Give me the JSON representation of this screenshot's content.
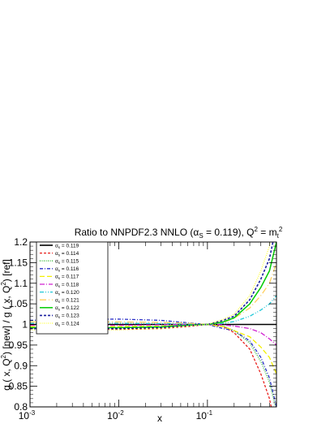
{
  "chart_data": {
    "type": "line",
    "title": "Ratio to NNPDF2.3 NNLO (αS = 0.119), Q2 = mt2",
    "title_parts": {
      "prefix": "Ratio to NNPDF2.3 NNLO (α",
      "alpha_sub": "S",
      "mid": " = 0.119), Q",
      "q_sup": "2",
      "eq": " = m",
      "m_sub": "t",
      "m_sup": "2"
    },
    "xlabel": "x",
    "ylabel": "g ( x, Q2) [new] / g ( x, Q2) [ref]",
    "ylabel_parts": {
      "p1": "g ( x, Q",
      "sup1": "2",
      "p2": ") [new] / g ( x, Q",
      "sup2": "2",
      "p3": ") [ref]"
    },
    "xscale": "log",
    "xlim": [
      0.001,
      0.6
    ],
    "ylim": [
      0.8,
      1.2
    ],
    "grid": false,
    "legend_position": "top-left",
    "x_ticks": [
      {
        "base": "10",
        "exp": "-3",
        "value": 0.001
      },
      {
        "base": "10",
        "exp": "-2",
        "value": 0.01
      },
      {
        "base": "10",
        "exp": "-1",
        "value": 0.1
      }
    ],
    "y_ticks": [
      "0.8",
      "0.85",
      "0.9",
      "0.95",
      "1",
      "1.05",
      "1.1",
      "1.15",
      "1.2"
    ],
    "x": [
      0.001,
      0.003,
      0.01,
      0.03,
      0.06,
      0.1,
      0.15,
      0.2,
      0.3,
      0.4,
      0.5,
      0.6
    ],
    "series": [
      {
        "name": "αs = 0.119",
        "alpha": "0.119",
        "color": "#000000",
        "dash": "",
        "width": 1.6,
        "values": [
          1,
          1,
          1,
          1,
          1,
          1,
          1,
          1,
          1,
          1,
          1,
          1
        ]
      },
      {
        "name": "αs = 0.114",
        "alpha": "0.114",
        "color": "#e8201c",
        "dash": "3,2",
        "width": 1.3,
        "values": [
          0.99,
          0.989,
          0.988,
          0.99,
          0.995,
          1.0,
          0.995,
          0.98,
          0.94,
          0.88,
          0.82,
          0.74
        ]
      },
      {
        "name": "αs = 0.115",
        "alpha": "0.115",
        "color": "#2fb52f",
        "dash": "1,1.5",
        "width": 1.3,
        "values": [
          0.994,
          0.993,
          0.992,
          0.993,
          0.997,
          1.0,
          0.996,
          0.985,
          0.955,
          0.91,
          0.86,
          0.79
        ]
      },
      {
        "name": "αs = 0.116",
        "alpha": "0.116",
        "color": "#2a2fc8",
        "dash": "4,2,1,2",
        "width": 1.3,
        "values": [
          1.01,
          1.012,
          1.013,
          1.01,
          1.004,
          1.0,
          0.99,
          0.985,
          0.96,
          0.92,
          0.87,
          0.8
        ]
      },
      {
        "name": "αs = 0.117",
        "alpha": "0.117",
        "color": "#f3f000",
        "dash": "6,3",
        "width": 1.3,
        "values": [
          0.995,
          0.995,
          0.995,
          0.996,
          0.998,
          1.0,
          0.995,
          0.985,
          0.97,
          0.945,
          0.92,
          0.88
        ]
      },
      {
        "name": "αs = 0.118",
        "alpha": "0.118",
        "color": "#d020d0",
        "dash": "6,2,1,2",
        "width": 1.3,
        "values": [
          0.998,
          0.998,
          0.998,
          0.999,
          1.0,
          1.0,
          0.999,
          0.996,
          0.99,
          0.98,
          0.965,
          0.95
        ]
      },
      {
        "name": "αs = 0.120",
        "alpha": "0.120",
        "color": "#20c8d8",
        "dash": "5,2,1,2,1,2",
        "width": 1.3,
        "values": [
          1.003,
          1.003,
          1.003,
          1.002,
          1.001,
          1.0,
          1.003,
          1.007,
          1.02,
          1.035,
          1.05,
          1.07
        ]
      },
      {
        "name": "αs = 0.121",
        "alpha": "0.121",
        "color": "#ffd060",
        "dash": "8,3,1,3",
        "width": 1.3,
        "values": [
          1.006,
          1.006,
          1.006,
          1.005,
          1.003,
          1.0,
          1.005,
          1.015,
          1.04,
          1.07,
          1.1,
          1.15
        ]
      },
      {
        "name": "αs = 0.122",
        "alpha": "0.122",
        "color": "#00cc00",
        "dash": "",
        "width": 1.5,
        "values": [
          0.992,
          0.992,
          0.992,
          0.994,
          0.998,
          1.0,
          1.006,
          1.016,
          1.05,
          1.09,
          1.13,
          1.2
        ]
      },
      {
        "name": "αs = 0.123",
        "alpha": "0.123",
        "color": "#1a20a0",
        "dash": "3,2",
        "width": 1.6,
        "values": [
          0.99,
          0.99,
          0.99,
          0.992,
          0.997,
          1.0,
          1.01,
          1.02,
          1.06,
          1.11,
          1.16,
          1.24
        ]
      },
      {
        "name": "αs = 0.124",
        "alpha": "0.124",
        "color": "#ffff33",
        "dash": "1,1.5",
        "width": 1.3,
        "values": [
          0.987,
          0.987,
          0.987,
          0.99,
          0.996,
          1.0,
          1.012,
          1.025,
          1.07,
          1.13,
          1.19,
          1.28
        ]
      }
    ]
  }
}
